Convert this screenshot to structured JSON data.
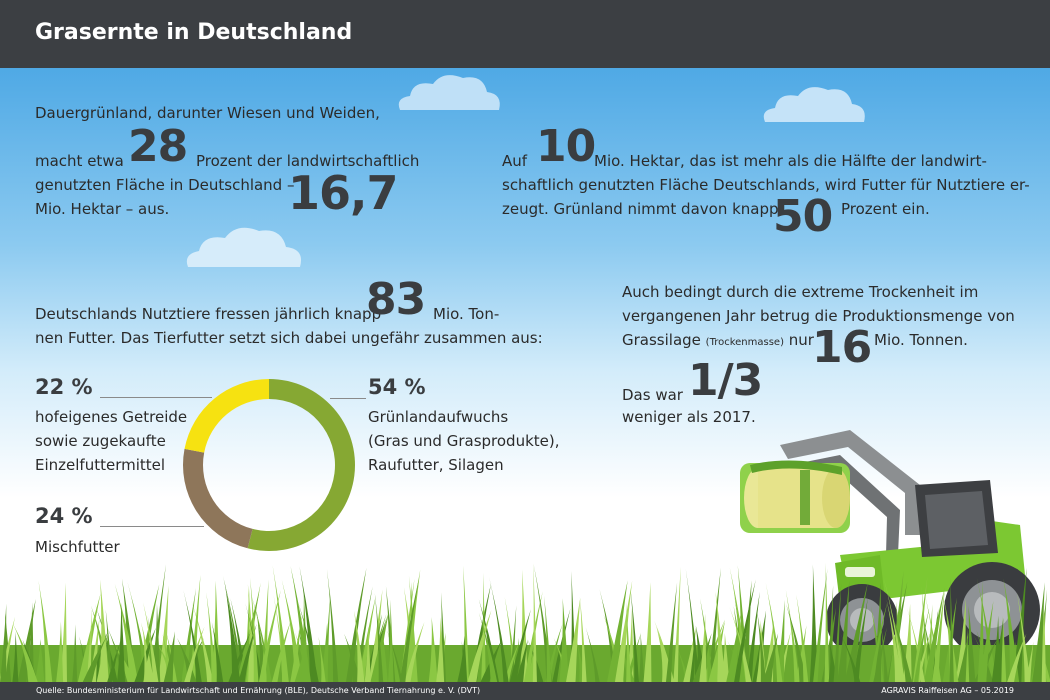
{
  "header": {
    "title": "Grasernte in Deutschland"
  },
  "block1": {
    "line1": "Dauergrünland, darunter Wiesen und Weiden,",
    "pre": "macht etwa",
    "num1": "28",
    "post1": "Prozent der landwirtschaftlich",
    "line3": "genutzten Fläche in Deutschland –",
    "line4": "Mio. Hektar – aus.",
    "num2": "16,7"
  },
  "block2": {
    "pre": "Auf",
    "num1": "10",
    "post1": "Mio. Hektar, das ist mehr als die Hälfte der landwirt-",
    "line2": "schaftlich genutzten Fläche Deutschlands, wird Futter für Nutztiere er-",
    "line3": "zeugt. Grünland nimmt davon knapp",
    "num2": "50",
    "post3": "Prozent ein."
  },
  "block3": {
    "pre": "Deutschlands Nutztiere fressen jährlich knapp",
    "num": "83",
    "post": "Mio. Ton-",
    "line2": "nen Futter. Das Tierfutter setzt sich dabei ungefähr zusammen aus:"
  },
  "block4": {
    "line1": "Auch bedingt durch die extreme Trockenheit im",
    "line2": "vergangenen Jahr betrug die Produktionsmenge von",
    "line3a": "Grassilage",
    "line3b": "(Trockenmasse)",
    "line3c": "nur",
    "num": "16",
    "post": "Mio. Tonnen.",
    "line4": "Das war",
    "fraction": "1/3",
    "line5": "weniger als 2017."
  },
  "chart_data": {
    "type": "pie",
    "categories": [
      "Grünlandaufwuchs (Gras und Grasprodukte), Raufutter, Silagen",
      "Mischfutter",
      "hofeigenes Getreide sowie zugekaufte Einzelfuttermittel"
    ],
    "values": [
      54,
      24,
      22
    ],
    "colors": [
      "#86a833",
      "#8e765a",
      "#f6e211"
    ],
    "labels": [
      {
        "pct": "54 %",
        "lines": [
          "Grünlandaufwuchs",
          "(Gras und Grasprodukte),",
          "Raufutter, Silagen"
        ]
      },
      {
        "pct": "24 %",
        "lines": [
          "Mischfutter"
        ]
      },
      {
        "pct": "22 %",
        "lines": [
          "hofeigenes Getreide",
          "sowie zugekaufte",
          "Einzelfuttermittel"
        ]
      }
    ]
  },
  "footer": {
    "source": "Quelle:   Bundesministerium für Landwirtschaft und Ernährung (BLE), Deutsche Verband Tiernahrung e. V. (DVT)",
    "credit": "AGRAVIS Raiffeisen AG – 05.2019"
  }
}
